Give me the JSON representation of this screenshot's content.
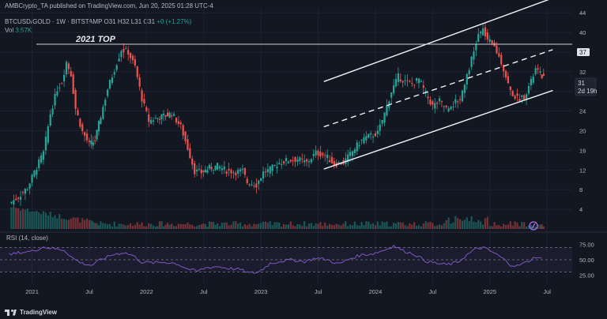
{
  "header": {
    "publisher_line": "AMBCrypto_TA published on TradingView.com, Jun 20, 2025 01:28 UTC-4",
    "symbol": "BTCUSD/GOLD · 1W · BITSTAMP",
    "ohlc_open": "O31",
    "ohlc_high": "H32",
    "ohlc_low": "L31",
    "ohlc_close": "C31",
    "change": "+0 (+1.27%)",
    "volume_label": "Vol",
    "volume_value": "3.57K"
  },
  "annotation": {
    "label": "2021 TOP"
  },
  "price_badges": {
    "level": "37",
    "current": "31",
    "countdown": "2d 19h"
  },
  "rsi": {
    "label": "RSI (14, close)",
    "value_hidden": "49.7"
  },
  "footer": {
    "brand": "TradingView"
  },
  "colors": {
    "up": "#26a69a",
    "down": "#ef5350",
    "rsi": "#7e57c2",
    "background": "#131722"
  },
  "chart_data": {
    "type": "candlestick",
    "title": "BTCUSD/GOLD",
    "timeframe": "1W",
    "x_ticks": [
      "2021",
      "Jul",
      "2022",
      "Jul",
      "2023",
      "Jul",
      "2024",
      "Jul",
      "2025",
      "Jul"
    ],
    "y_ticks": [
      "44",
      "40",
      "36",
      "32",
      "28",
      "24",
      "20",
      "16",
      "12",
      "8",
      "4"
    ],
    "ylim": [
      0,
      45
    ],
    "horizontal_line": 37.6,
    "close_series": [
      [
        2020.8,
        5.2
      ],
      [
        2020.88,
        6.5
      ],
      [
        2020.96,
        8.4
      ],
      [
        2021.04,
        12.6
      ],
      [
        2021.1,
        15.5
      ],
      [
        2021.16,
        23.5
      ],
      [
        2021.22,
        28.5
      ],
      [
        2021.26,
        30.0
      ],
      [
        2021.3,
        34.0
      ],
      [
        2021.34,
        31.5
      ],
      [
        2021.38,
        24.5
      ],
      [
        2021.44,
        19.8
      ],
      [
        2021.5,
        17.2
      ],
      [
        2021.55,
        18.0
      ],
      [
        2021.6,
        23.0
      ],
      [
        2021.66,
        28.5
      ],
      [
        2021.72,
        32.5
      ],
      [
        2021.78,
        36.5
      ],
      [
        2021.84,
        36.0
      ],
      [
        2021.9,
        33.0
      ],
      [
        2021.96,
        26.5
      ],
      [
        2022.02,
        22.0
      ],
      [
        2022.08,
        22.5
      ],
      [
        2022.15,
        23.0
      ],
      [
        2022.22,
        23.5
      ],
      [
        2022.3,
        20.8
      ],
      [
        2022.36,
        16.5
      ],
      [
        2022.42,
        11.8
      ],
      [
        2022.48,
        11.5
      ],
      [
        2022.55,
        12.4
      ],
      [
        2022.62,
        12.8
      ],
      [
        2022.7,
        11.9
      ],
      [
        2022.78,
        11.6
      ],
      [
        2022.84,
        11.8
      ],
      [
        2022.88,
        9.5
      ],
      [
        2022.96,
        9.0
      ],
      [
        2023.02,
        11.5
      ],
      [
        2023.08,
        12.1
      ],
      [
        2023.16,
        13.5
      ],
      [
        2023.24,
        14.0
      ],
      [
        2023.32,
        14.2
      ],
      [
        2023.4,
        13.5
      ],
      [
        2023.48,
        15.5
      ],
      [
        2023.56,
        15.0
      ],
      [
        2023.64,
        13.2
      ],
      [
        2023.72,
        13.5
      ],
      [
        2023.78,
        15.2
      ],
      [
        2023.84,
        17.0
      ],
      [
        2023.9,
        18.5
      ],
      [
        2023.96,
        19.0
      ],
      [
        2024.02,
        19.5
      ],
      [
        2024.08,
        23.5
      ],
      [
        2024.14,
        28.0
      ],
      [
        2024.2,
        31.0
      ],
      [
        2024.26,
        30.0
      ],
      [
        2024.32,
        29.5
      ],
      [
        2024.38,
        30.5
      ],
      [
        2024.44,
        27.5
      ],
      [
        2024.5,
        25.0
      ],
      [
        2024.56,
        26.0
      ],
      [
        2024.62,
        24.5
      ],
      [
        2024.68,
        25.5
      ],
      [
        2024.74,
        26.5
      ],
      [
        2024.8,
        31.5
      ],
      [
        2024.86,
        36.0
      ],
      [
        2024.9,
        39.5
      ],
      [
        2024.94,
        40.5
      ],
      [
        2024.98,
        38.5
      ],
      [
        2025.04,
        37.0
      ],
      [
        2025.1,
        34.0
      ],
      [
        2025.14,
        31.0
      ],
      [
        2025.18,
        28.0
      ],
      [
        2025.24,
        26.5
      ],
      [
        2025.3,
        27.0
      ],
      [
        2025.36,
        30.0
      ],
      [
        2025.4,
        32.5
      ],
      [
        2025.44,
        31.5
      ],
      [
        2025.47,
        30.8
      ]
    ],
    "channel": {
      "upper": [
        [
          2023.55,
          30.0
        ],
        [
          2025.55,
          47.0
        ]
      ],
      "middle": [
        [
          2023.55,
          20.8
        ],
        [
          2025.55,
          36.5
        ]
      ],
      "lower": [
        [
          2023.55,
          12.2
        ],
        [
          2025.55,
          28.2
        ]
      ]
    },
    "rsi_ticks": [
      "75.00",
      "50.00",
      "25.00"
    ],
    "rsi_ylim": [
      10,
      90
    ],
    "rsi_series": [
      [
        2020.8,
        58
      ],
      [
        2020.9,
        62
      ],
      [
        2021.0,
        64
      ],
      [
        2021.1,
        71
      ],
      [
        2021.2,
        68
      ],
      [
        2021.28,
        66
      ],
      [
        2021.36,
        52
      ],
      [
        2021.44,
        44
      ],
      [
        2021.52,
        41
      ],
      [
        2021.6,
        50
      ],
      [
        2021.7,
        58
      ],
      [
        2021.8,
        62
      ],
      [
        2021.88,
        57
      ],
      [
        2021.96,
        46
      ],
      [
        2022.06,
        45
      ],
      [
        2022.16,
        46
      ],
      [
        2022.26,
        44
      ],
      [
        2022.36,
        35
      ],
      [
        2022.44,
        31
      ],
      [
        2022.52,
        37
      ],
      [
        2022.62,
        39
      ],
      [
        2022.72,
        36
      ],
      [
        2022.82,
        34
      ],
      [
        2022.9,
        28
      ],
      [
        2022.98,
        30
      ],
      [
        2023.08,
        44
      ],
      [
        2023.18,
        48
      ],
      [
        2023.28,
        50
      ],
      [
        2023.38,
        47
      ],
      [
        2023.48,
        53
      ],
      [
        2023.58,
        50
      ],
      [
        2023.68,
        43
      ],
      [
        2023.78,
        52
      ],
      [
        2023.88,
        58
      ],
      [
        2023.98,
        60
      ],
      [
        2024.08,
        66
      ],
      [
        2024.16,
        73
      ],
      [
        2024.24,
        65
      ],
      [
        2024.34,
        59
      ],
      [
        2024.44,
        48
      ],
      [
        2024.54,
        44
      ],
      [
        2024.62,
        42
      ],
      [
        2024.72,
        46
      ],
      [
        2024.8,
        58
      ],
      [
        2024.88,
        68
      ],
      [
        2024.94,
        70
      ],
      [
        2025.02,
        63
      ],
      [
        2025.1,
        54
      ],
      [
        2025.18,
        42
      ],
      [
        2025.24,
        40
      ],
      [
        2025.32,
        46
      ],
      [
        2025.4,
        55
      ],
      [
        2025.44,
        52
      ],
      [
        2025.47,
        50
      ]
    ]
  }
}
